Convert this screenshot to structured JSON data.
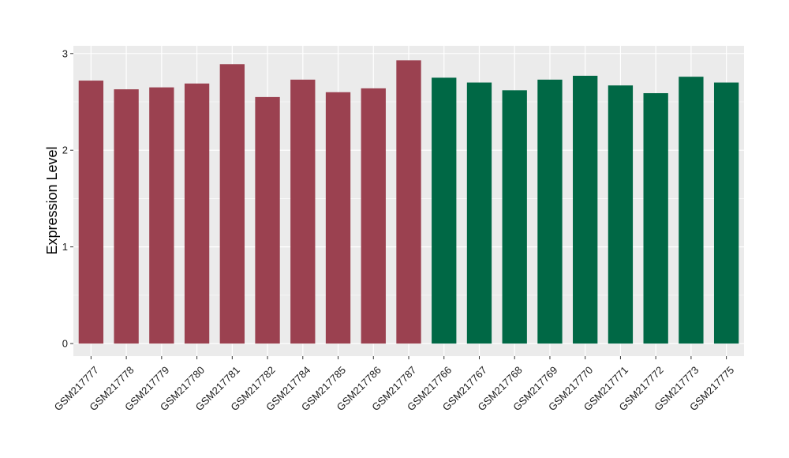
{
  "chart_data": {
    "type": "bar",
    "ylabel": "Expression Level",
    "xlabel": "",
    "ylim": [
      -0.13,
      3.08
    ],
    "yticks": [
      0,
      1,
      2,
      3
    ],
    "grid": true,
    "legend": "none",
    "categories": [
      "GSM217777",
      "GSM217778",
      "GSM217779",
      "GSM217780",
      "GSM217781",
      "GSM217782",
      "GSM217784",
      "GSM217785",
      "GSM217786",
      "GSM217787",
      "GSM217766",
      "GSM217767",
      "GSM217768",
      "GSM217769",
      "GSM217770",
      "GSM217771",
      "GSM217772",
      "GSM217773",
      "GSM217775"
    ],
    "values": [
      2.72,
      2.63,
      2.65,
      2.69,
      2.89,
      2.55,
      2.73,
      2.6,
      2.64,
      2.93,
      2.75,
      2.7,
      2.62,
      2.73,
      2.77,
      2.67,
      2.59,
      2.76,
      2.7
    ],
    "bar_colors": [
      "#9b4150",
      "#9b4150",
      "#9b4150",
      "#9b4150",
      "#9b4150",
      "#9b4150",
      "#9b4150",
      "#9b4150",
      "#9b4150",
      "#9b4150",
      "#006845",
      "#006845",
      "#006845",
      "#006845",
      "#006845",
      "#006845",
      "#006845",
      "#006845",
      "#006845"
    ],
    "panel_background": "#ebebeb",
    "grid_color": "#ffffff"
  }
}
